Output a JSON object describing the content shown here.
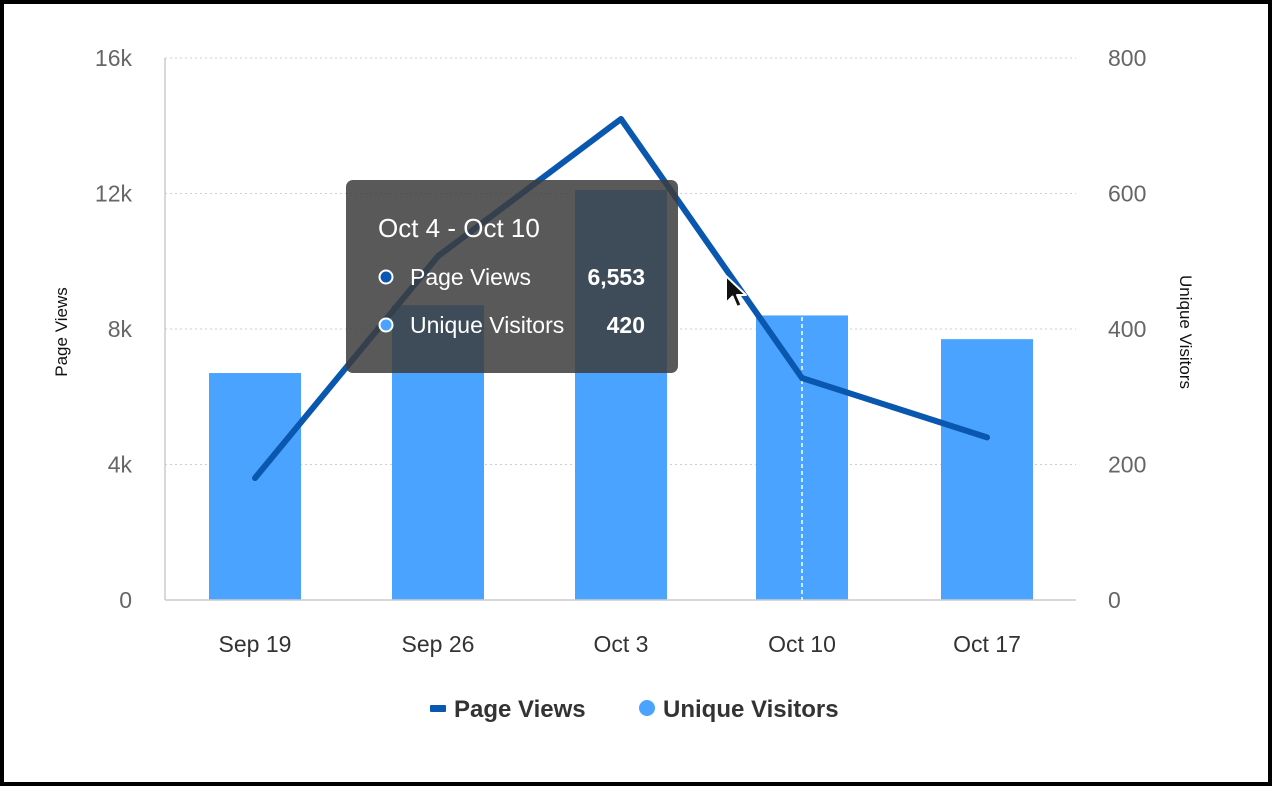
{
  "chart_data": {
    "type": "bar",
    "categories": [
      "Sep 19",
      "Sep 26",
      "Oct 3",
      "Oct 10",
      "Oct 17"
    ],
    "series": [
      {
        "name": "Page Views",
        "type": "line",
        "axis": "left",
        "values": [
          3600,
          10150,
          14200,
          6553,
          4800
        ],
        "color": "#0a57b0"
      },
      {
        "name": "Unique Visitors",
        "type": "bar",
        "axis": "right",
        "values": [
          335,
          435,
          605,
          420,
          385
        ],
        "color": "#4aa3ff"
      }
    ],
    "ylabel": "Page Views",
    "y2label": "Unique Visitors",
    "ylim": [
      0,
      16000
    ],
    "y2lim": [
      0,
      800
    ],
    "yticks": [
      "0",
      "4k",
      "8k",
      "12k",
      "16k"
    ],
    "y2ticks": [
      "0",
      "200",
      "400",
      "600",
      "800"
    ],
    "grid": true,
    "legend_position": "bottom",
    "hover_category_index": 3
  },
  "legend": {
    "items": [
      {
        "label": "Page Views",
        "marker": "line",
        "color": "#0a57b0"
      },
      {
        "label": "Unique Visitors",
        "marker": "circle",
        "color": "#4aa3ff"
      }
    ]
  },
  "tooltip": {
    "title": "Oct 4 - Oct 10",
    "rows": [
      {
        "label": "Page Views",
        "value": "6,553",
        "color": "#0a57b0"
      },
      {
        "label": "Unique Visitors",
        "value": "420",
        "color": "#4aa3ff"
      }
    ]
  },
  "icons": {
    "cursor": "mouse-pointer-icon"
  }
}
